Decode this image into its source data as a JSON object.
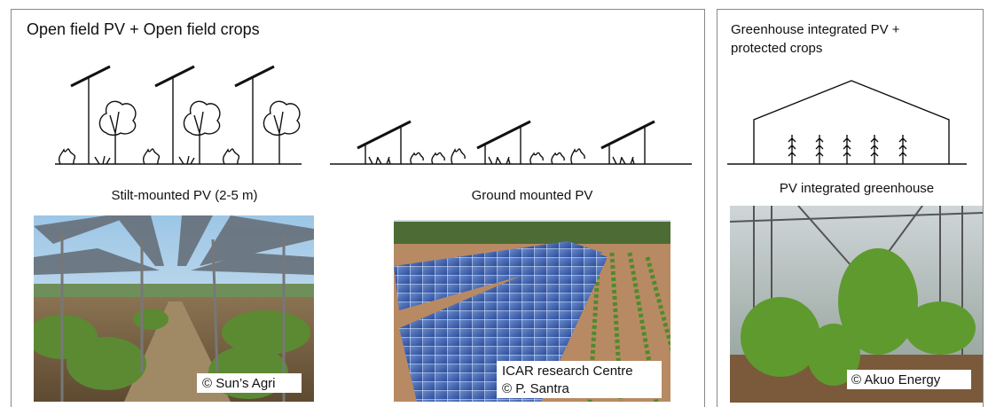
{
  "panels": [
    {
      "title": "Open field PV + Open field crops",
      "systems": [
        {
          "label": "Stilt-mounted PV (2-5 m)",
          "credit": [
            "© Sun’s Agri"
          ]
        },
        {
          "label": "Ground mounted PV",
          "credit": [
            "ICAR research Centre",
            "© P. Santra"
          ]
        }
      ]
    },
    {
      "title": [
        "Greenhouse integrated PV +",
        "protected crops"
      ],
      "systems": [
        {
          "label": "PV integrated greenhouse",
          "credit": [
            "© Akuo Energy"
          ]
        }
      ]
    }
  ]
}
